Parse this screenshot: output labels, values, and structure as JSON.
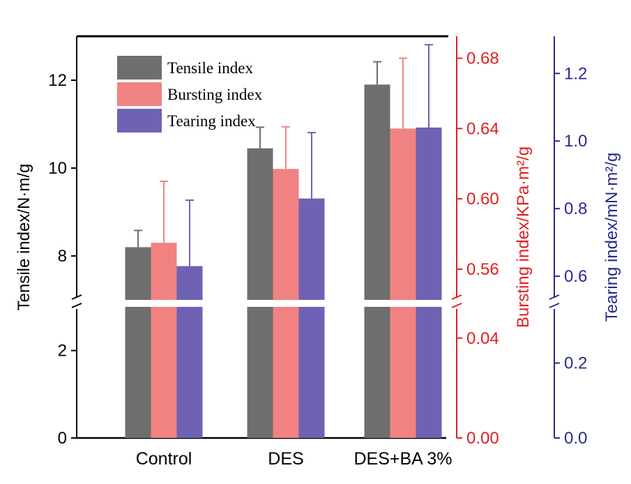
{
  "chart_data": {
    "type": "bar",
    "categories": [
      "Control",
      "DES",
      "DES+BA 3%"
    ],
    "series": [
      {
        "name": "Tensile index",
        "axis": "left",
        "color": "#6e6e6e",
        "values": [
          8.2,
          10.45,
          11.9
        ],
        "error": [
          0.38,
          0.48,
          0.52
        ]
      },
      {
        "name": "Bursting index",
        "axis": "right1",
        "color": "#f08282",
        "values": [
          0.575,
          0.617,
          0.64
        ],
        "error": [
          0.035,
          0.024,
          0.04
        ]
      },
      {
        "name": "Tearing index",
        "axis": "right2",
        "color": "#6e62b4",
        "values": [
          0.63,
          0.83,
          1.04
        ],
        "error": [
          0.195,
          0.195,
          0.245
        ]
      }
    ],
    "axes": {
      "left": {
        "label": "Tensile index/N·m/g",
        "color": "#000000",
        "lower_range": [
          0,
          3
        ],
        "upper_range": [
          7,
          13
        ],
        "ticks": [
          "0",
          "2",
          "8",
          "10",
          "12"
        ]
      },
      "right1": {
        "label": "Bursting index/KPa·m²/g",
        "color": "#e02020",
        "lower_range": [
          0,
          0.0525
        ],
        "upper_range": [
          0.5425,
          0.6925
        ],
        "ticks": [
          "0.00",
          "0.04",
          "0.56",
          "0.60",
          "0.64",
          "0.68"
        ]
      },
      "right2": {
        "label": "Tearing index/mN·m²/g",
        "color": "#2a2a8c",
        "lower_range": [
          0,
          0.35
        ],
        "upper_range": [
          0.53,
          1.31
        ],
        "ticks": [
          "0.0",
          "0.2",
          "0.6",
          "0.8",
          "1.0",
          "1.2"
        ]
      }
    },
    "legend": {
      "position": "top-left",
      "entries": [
        "Tensile index",
        "Bursting index",
        "Tearing index"
      ]
    },
    "broken_axis": true
  }
}
